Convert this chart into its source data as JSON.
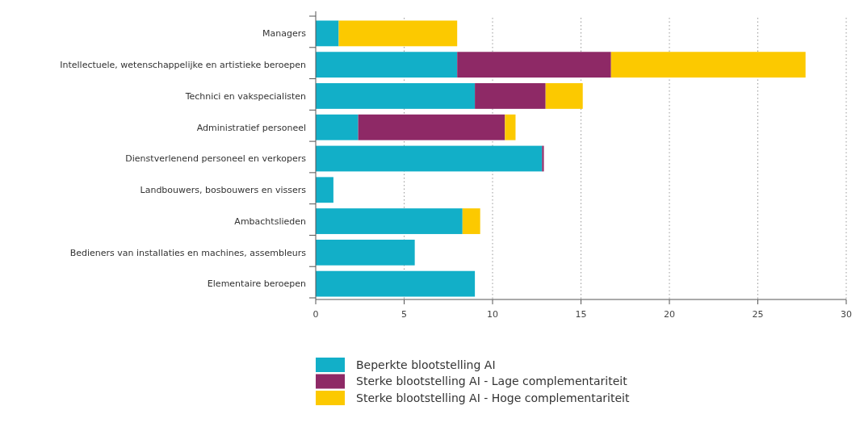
{
  "chart_data": {
    "type": "bar",
    "orientation": "horizontal",
    "stacked": true,
    "categories": [
      "Managers",
      "Intellectuele, wetenschappelijke en artistieke beroepen",
      "Technici en vakspecialisten",
      "Administratief personeel",
      "Dienstverlenend personeel en verkopers",
      "Landbouwers, bosbouwers en vissers",
      "Ambachtslieden",
      "Bedieners van installaties en machines, assembleurs",
      "Elementaire beroepen"
    ],
    "series": [
      {
        "name": "Beperkte blootstelling AI",
        "color": "#12afc8",
        "values": [
          1.3,
          8.0,
          9.0,
          2.4,
          12.8,
          1.0,
          8.3,
          5.6,
          9.0
        ]
      },
      {
        "name": "Sterke blootstelling AI - Lage complementariteit",
        "color": "#8e2966",
        "values": [
          null,
          8.7,
          4.0,
          8.3,
          0.1,
          null,
          null,
          null,
          null
        ]
      },
      {
        "name": "Sterke blootstelling AI - Hoge complementariteit",
        "color": "#fcc900",
        "values": [
          6.7,
          11.0,
          2.1,
          0.6,
          null,
          null,
          1.0,
          null,
          null
        ]
      }
    ],
    "xlim": [
      0,
      30
    ],
    "xticks": [
      0,
      5,
      10,
      15,
      20,
      25,
      30
    ],
    "grid": "x",
    "legend": "bottom"
  }
}
